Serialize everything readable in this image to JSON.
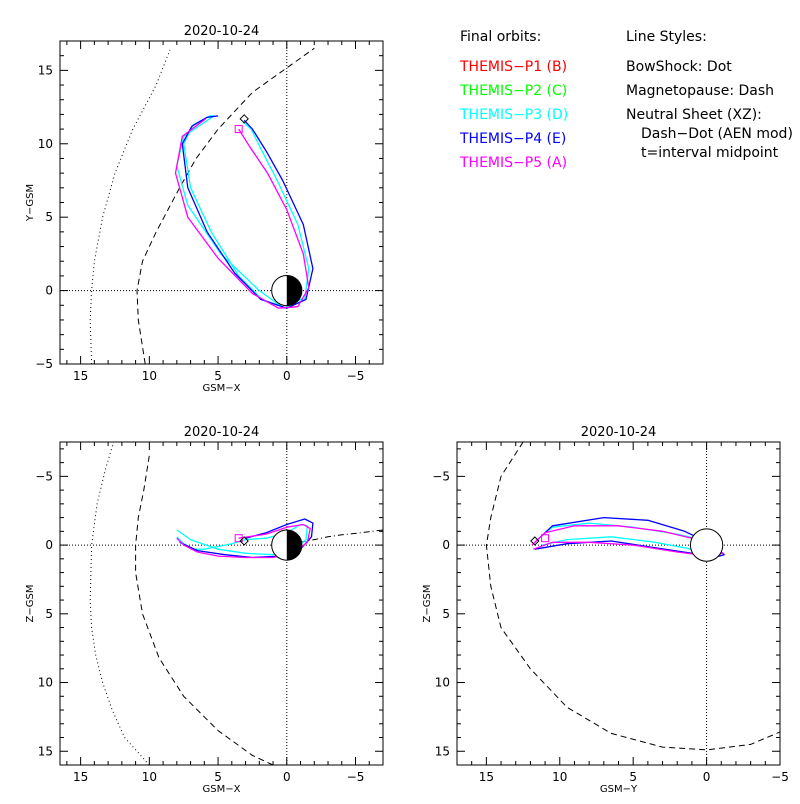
{
  "legend": {
    "heading": "Final orbits:",
    "probes": [
      {
        "label": "THEMIS−P1 (B)",
        "color": "#ff0000"
      },
      {
        "label": "THEMIS−P2 (C)",
        "color": "#00ff00"
      },
      {
        "label": "THEMIS−P3 (D)",
        "color": "#00ffff"
      },
      {
        "label": "THEMIS−P4 (E)",
        "color": "#0000ff"
      },
      {
        "label": "THEMIS−P5 (A)",
        "color": "#ff00ff"
      }
    ],
    "styles_heading": "Line Styles:",
    "styles": [
      "BowShock: Dot",
      "Magnetopause: Dash",
      "Neutral Sheet (XZ):",
      "Dash−Dot (AEN mod)",
      "t=interval midpoint"
    ]
  },
  "chart_data": [
    {
      "type": "line",
      "title": "2020-10-24",
      "xlabel": "GSM−X",
      "ylabel": "Y−GSM",
      "xlim": [
        16.5,
        -7
      ],
      "ylim": [
        17,
        -5
      ],
      "xticks": [
        "15",
        "10",
        "5",
        "0",
        "−5"
      ],
      "yticks": [
        "−5",
        "0",
        "5",
        "10",
        "15"
      ],
      "bow_shock": [
        [
          14.2,
          -5
        ],
        [
          14.3,
          -2
        ],
        [
          14.2,
          0
        ],
        [
          14,
          2
        ],
        [
          13.4,
          5
        ],
        [
          12.5,
          8
        ],
        [
          11.2,
          11
        ],
        [
          9.5,
          14
        ],
        [
          8.5,
          16.4
        ]
      ],
      "magnetopause": [
        [
          10.3,
          -5
        ],
        [
          10.8,
          -2
        ],
        [
          10.9,
          0
        ],
        [
          10.5,
          2
        ],
        [
          9.5,
          4
        ],
        [
          7.8,
          7
        ],
        [
          6.6,
          9
        ],
        [
          5,
          11
        ],
        [
          2.5,
          13.5
        ],
        [
          -2,
          16.5
        ]
      ],
      "series": [
        {
          "name": "THEMIS−P3 (D)",
          "color": "#00ffff",
          "points": [
            [
              -1.2,
              -0.5
            ],
            [
              0.2,
              -1.2
            ],
            [
              2,
              0
            ],
            [
              4.8,
              2.5
            ],
            [
              7.2,
              5.8
            ],
            [
              8,
              8.5
            ],
            [
              7.5,
              10.5
            ],
            [
              5.3,
              11.9
            ],
            [
              5.6,
              11.9
            ],
            [
              6.8,
              11.3
            ],
            [
              7.5,
              10
            ],
            [
              7,
              7
            ],
            [
              5.5,
              4
            ],
            [
              3.5,
              1
            ],
            [
              1.8,
              -0.6
            ],
            [
              0,
              -1.2
            ],
            [
              -1.3,
              -0.6
            ],
            [
              -1.6,
              1.5
            ],
            [
              -0.8,
              4.5
            ],
            [
              0.7,
              7.5
            ],
            [
              1.8,
              9.5
            ],
            [
              2.6,
              11
            ],
            [
              3.2,
              11.5
            ]
          ]
        },
        {
          "name": "THEMIS−P4 (E)",
          "color": "#0000ff",
          "points": [
            [
              5,
              11.9
            ],
            [
              5.8,
              11.8
            ],
            [
              6.9,
              11.2
            ],
            [
              7.6,
              10
            ],
            [
              7.2,
              7
            ],
            [
              5.8,
              4
            ],
            [
              3.8,
              1.2
            ],
            [
              1.9,
              -0.6
            ],
            [
              0,
              -1.2
            ],
            [
              -1.4,
              -0.6
            ],
            [
              -1.9,
              1.5
            ],
            [
              -1.2,
              4.5
            ],
            [
              0.3,
              7.5
            ],
            [
              1.5,
              9.5
            ],
            [
              2.5,
              11
            ],
            [
              3.1,
              11.6
            ]
          ]
        },
        {
          "name": "THEMIS−P5 (A)",
          "color": "#ff00ff",
          "points": [
            [
              3.5,
              11
            ],
            [
              2.7,
              9.8
            ],
            [
              1.4,
              8
            ],
            [
              0,
              5.5
            ],
            [
              -1.2,
              2.5
            ],
            [
              -1.6,
              0.2
            ],
            [
              -0.8,
              -1.1
            ],
            [
              0.6,
              -1.2
            ],
            [
              2.5,
              -0.2
            ],
            [
              5,
              2.2
            ],
            [
              7.2,
              5
            ],
            [
              8.1,
              8
            ],
            [
              7.6,
              10.5
            ],
            [
              5.9,
              11.7
            ]
          ]
        }
      ],
      "earth": [
        0,
        0,
        1.1
      ],
      "markers": [
        {
          "shape": "square",
          "color": "#ff00ff",
          "point": [
            3.5,
            11
          ]
        },
        {
          "shape": "diamond",
          "color": "#000000",
          "point": [
            3.1,
            11.7
          ]
        }
      ]
    },
    {
      "type": "line",
      "title": "2020-10-24",
      "xlabel": "GSM−X",
      "ylabel": "Z−GSM",
      "xlim": [
        16.5,
        -7
      ],
      "ylim": [
        -7.5,
        16
      ],
      "xticks": [
        "15",
        "10",
        "5",
        "0",
        "−5"
      ],
      "yticks": [
        "−5",
        "0",
        "5",
        "10",
        "15"
      ],
      "bow_shock": [
        [
          10,
          16
        ],
        [
          11.8,
          14
        ],
        [
          12.7,
          12
        ],
        [
          13.4,
          10
        ],
        [
          13.9,
          8
        ],
        [
          14.2,
          6
        ],
        [
          14.3,
          4
        ],
        [
          14.2,
          0
        ],
        [
          13.8,
          -3
        ],
        [
          13.2,
          -5.5
        ],
        [
          12.6,
          -7.5
        ]
      ],
      "magnetopause": [
        [
          1,
          16
        ],
        [
          2.5,
          15.3
        ],
        [
          5,
          13.5
        ],
        [
          7.5,
          11
        ],
        [
          9.3,
          8.2
        ],
        [
          10.5,
          5
        ],
        [
          11,
          2
        ],
        [
          11,
          0
        ],
        [
          10.8,
          -2
        ],
        [
          10.4,
          -4
        ],
        [
          10,
          -6.5
        ]
      ],
      "neutral_sheet": [
        [
          0,
          0
        ],
        [
          -1,
          -0.2
        ],
        [
          -2,
          -0.4
        ],
        [
          -3,
          -0.6
        ],
        [
          -4,
          -0.75
        ],
        [
          -5,
          -0.85
        ],
        [
          -7,
          -1.1
        ]
      ],
      "series": [
        {
          "name": "THEMIS−P3 (D)",
          "color": "#00ffff",
          "points": [
            [
              8,
              -1.1
            ],
            [
              7,
              -0.4
            ],
            [
              5,
              0.3
            ],
            [
              3,
              0.6
            ],
            [
              1,
              0.7
            ],
            [
              -0.5,
              0.4
            ],
            [
              -1.4,
              -0.4
            ],
            [
              -1.5,
              -1.4
            ],
            [
              -1,
              -1.5
            ],
            [
              0,
              -0.9
            ],
            [
              1.5,
              -0.5
            ],
            [
              3,
              -0.4
            ],
            [
              4,
              -0.1
            ],
            [
              5,
              0.1
            ],
            [
              6,
              0.3
            ],
            [
              6.8,
              0.3
            ],
            [
              7.5,
              -0.1
            ],
            [
              8,
              -0.6
            ]
          ]
        },
        {
          "name": "THEMIS−P4 (E)",
          "color": "#0000ff",
          "points": [
            [
              7.8,
              -0.2
            ],
            [
              6.5,
              0.4
            ],
            [
              4.5,
              0.7
            ],
            [
              2.5,
              0.9
            ],
            [
              0.5,
              0.8
            ],
            [
              -1,
              0.3
            ],
            [
              -1.8,
              -0.6
            ],
            [
              -1.9,
              -1.6
            ],
            [
              -1.3,
              -1.9
            ],
            [
              0,
              -1.5
            ],
            [
              1.5,
              -0.9
            ],
            [
              3,
              -0.5
            ]
          ]
        },
        {
          "name": "THEMIS−P5 (A)",
          "color": "#ff00ff",
          "points": [
            [
              8,
              -0.5
            ],
            [
              7.5,
              0
            ],
            [
              6.5,
              0.5
            ],
            [
              5,
              0.8
            ],
            [
              3,
              0.9
            ],
            [
              1,
              0.9
            ],
            [
              -0.5,
              0.6
            ],
            [
              -1.5,
              -0.2
            ],
            [
              -1.7,
              -1.2
            ],
            [
              -1.2,
              -1.5
            ],
            [
              0,
              -1.3
            ],
            [
              1.5,
              -0.8
            ],
            [
              3.5,
              -0.5
            ]
          ]
        }
      ],
      "earth": [
        0,
        0,
        1.1
      ],
      "markers": [
        {
          "shape": "square",
          "color": "#ff00ff",
          "point": [
            3.5,
            -0.5
          ]
        },
        {
          "shape": "diamond",
          "color": "#000000",
          "point": [
            3.1,
            -0.3
          ]
        }
      ]
    },
    {
      "type": "line",
      "title": "2020-10-24",
      "xlabel": "GSM−Y",
      "ylabel": "Z−GSM",
      "xlim": [
        17,
        -5
      ],
      "ylim": [
        -7.5,
        16
      ],
      "xticks": [
        "15",
        "10",
        "5",
        "0",
        "−5"
      ],
      "yticks": [
        "−5",
        "0",
        "5",
        "10",
        "15"
      ],
      "magnetopause": [
        [
          12.5,
          -7.5
        ],
        [
          14,
          -5
        ],
        [
          14.7,
          -2
        ],
        [
          15,
          0
        ],
        [
          14.7,
          3
        ],
        [
          14,
          6
        ],
        [
          12,
          9
        ],
        [
          9.5,
          11.8
        ],
        [
          6.5,
          13.7
        ],
        [
          3,
          14.7
        ],
        [
          0,
          14.9
        ],
        [
          -3,
          14.5
        ],
        [
          -5,
          13.6
        ]
      ],
      "series": [
        {
          "name": "THEMIS−P3 (D)",
          "color": "#00ffff",
          "points": [
            [
              11.3,
              -0.6
            ],
            [
              10.5,
              -1.3
            ],
            [
              8,
              -1.6
            ],
            [
              5,
              -1.3
            ],
            [
              2,
              -0.8
            ],
            [
              0,
              -0.3
            ],
            [
              -1.1,
              0.2
            ],
            [
              -0.5,
              0.5
            ],
            [
              1,
              0.3
            ],
            [
              3.5,
              -0.2
            ],
            [
              6.5,
              -0.6
            ],
            [
              9.5,
              -0.4
            ],
            [
              11.2,
              0
            ]
          ]
        },
        {
          "name": "THEMIS−P4 (E)",
          "color": "#0000ff",
          "points": [
            [
              11.7,
              -0.2
            ],
            [
              10.5,
              -1.4
            ],
            [
              7,
              -2
            ],
            [
              4,
              -1.8
            ],
            [
              1.5,
              -1
            ],
            [
              -0.5,
              0
            ],
            [
              -1.2,
              0.7
            ],
            [
              -0.5,
              0.9
            ],
            [
              1,
              0.6
            ],
            [
              3.5,
              0.2
            ],
            [
              6.5,
              -0.3
            ],
            [
              9.5,
              -0.1
            ],
            [
              11.7,
              0.3
            ]
          ]
        },
        {
          "name": "THEMIS−P5 (A)",
          "color": "#ff00ff",
          "points": [
            [
              11.9,
              0
            ],
            [
              11,
              -0.9
            ],
            [
              9,
              -1.4
            ],
            [
              6,
              -1.4
            ],
            [
              3,
              -1
            ],
            [
              1,
              -0.5
            ],
            [
              -0.5,
              0.1
            ],
            [
              -1.1,
              0.6
            ],
            [
              -0.2,
              0.8
            ],
            [
              2,
              0.5
            ],
            [
              5,
              0
            ],
            [
              8,
              -0.2
            ],
            [
              10.5,
              -0.2
            ],
            [
              11.8,
              0.3
            ]
          ]
        }
      ],
      "earth": [
        0,
        0,
        1.1
      ],
      "markers": [
        {
          "shape": "square",
          "color": "#ff00ff",
          "point": [
            11,
            -0.5
          ]
        },
        {
          "shape": "diamond",
          "color": "#000000",
          "point": [
            11.7,
            -0.3
          ]
        }
      ]
    }
  ]
}
